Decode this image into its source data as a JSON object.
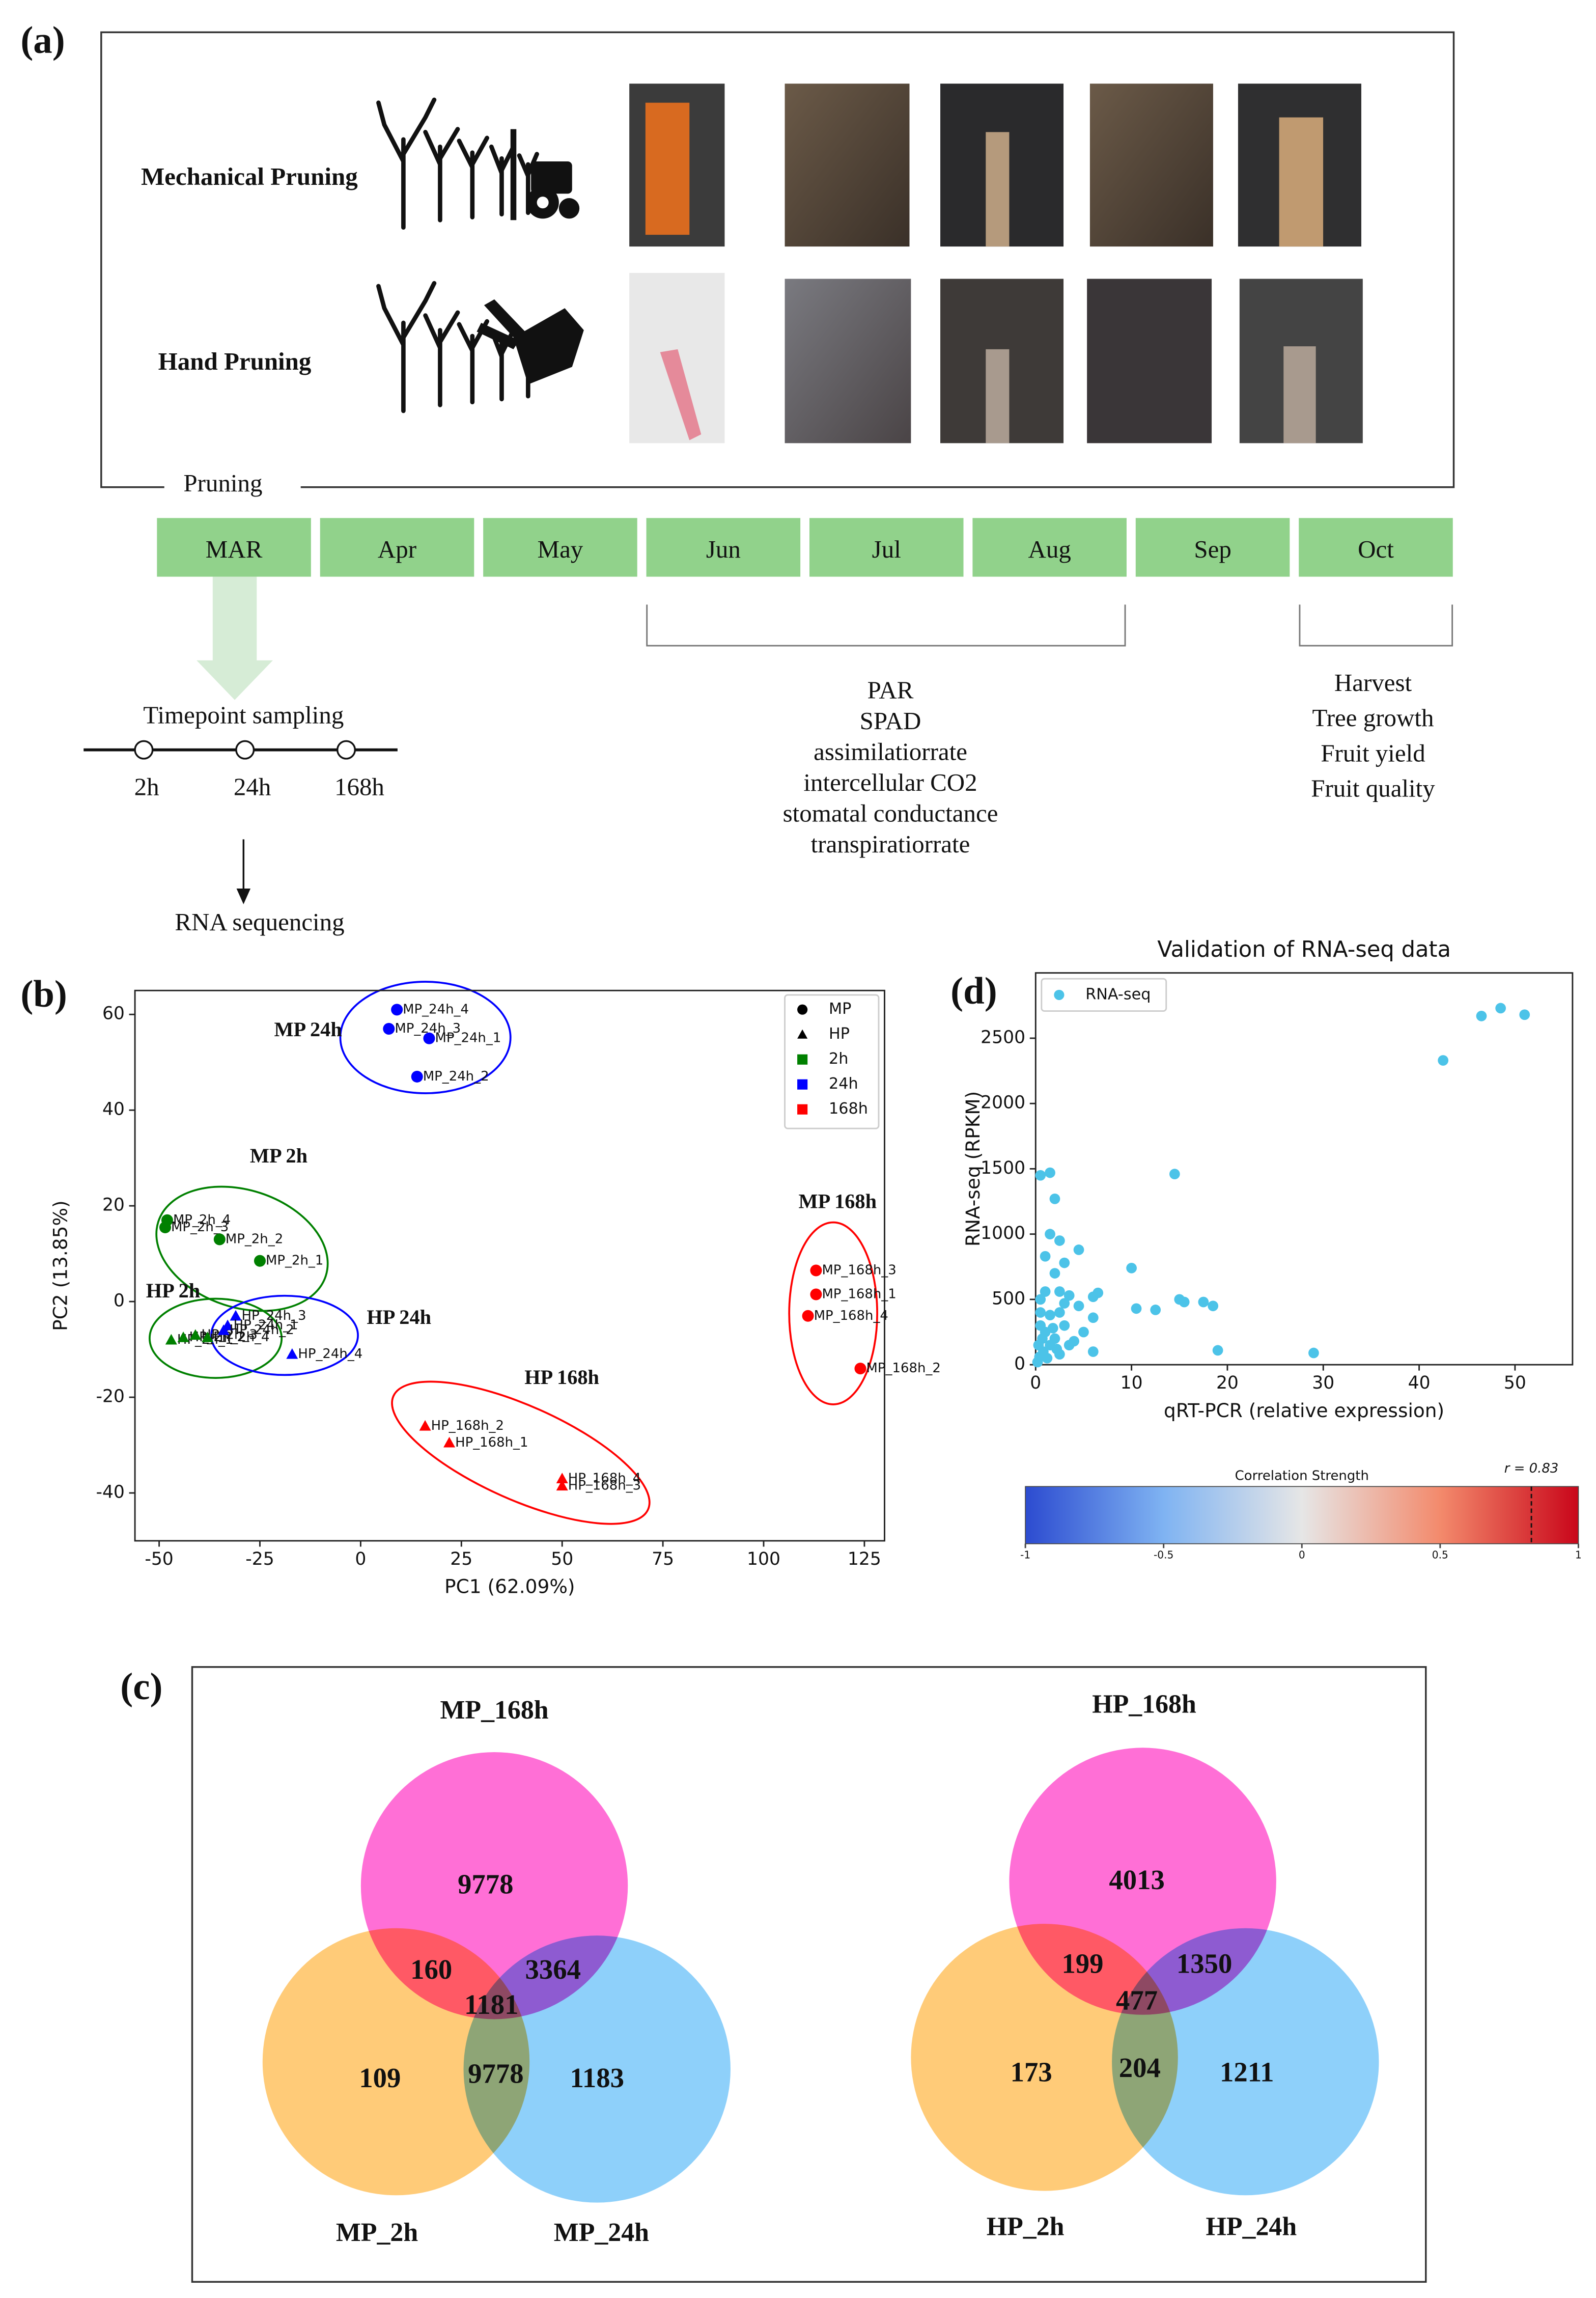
{
  "panel_a": {
    "label": "(a)",
    "rows": [
      "Mechanical Pruning",
      "Hand Pruning"
    ],
    "pruning_label": "Pruning",
    "months": [
      "MAR",
      "Apr",
      "May",
      "Jun",
      "Jul",
      "Aug",
      "Sep",
      "Oct"
    ],
    "measurements": [
      "PAR",
      "SPAD",
      "assimilatiorrate",
      "intercellular CO2",
      "stomatal conductance",
      "transpiratiorrate"
    ],
    "outcomes": [
      "Harvest",
      "Tree growth",
      "Fruit yield",
      "Fruit quality"
    ],
    "sampling": {
      "title": "Timepoint sampling",
      "timepoints": [
        "2h",
        "24h",
        "168h"
      ]
    },
    "sequencing": "RNA sequencing"
  },
  "chart_data": [
    {
      "type": "scatter",
      "label": "(b)",
      "xlabel": "PC1 (62.09%)",
      "ylabel": "PC2 (13.85%)",
      "xlim": [
        -56,
        130
      ],
      "ylim": [
        -50,
        65
      ],
      "xticks": [
        -50,
        -25,
        0,
        25,
        50,
        75,
        100,
        125
      ],
      "yticks": [
        -40,
        -20,
        0,
        20,
        40,
        60
      ],
      "grid": false,
      "legend_position": "upper right",
      "legend": [
        {
          "label": "MP",
          "marker": "circle",
          "color": "#000000"
        },
        {
          "label": "HP",
          "marker": "triangle",
          "color": "#000000"
        },
        {
          "label": "2h",
          "marker": "square",
          "color": "#008000"
        },
        {
          "label": "24h",
          "marker": "square",
          "color": "#0000ff"
        },
        {
          "label": "168h",
          "marker": "square",
          "color": "#ff0000"
        }
      ],
      "series": [
        {
          "name": "MP 24h",
          "color": "#0000ff",
          "marker": "circle",
          "x": [
            9,
            7,
            17,
            14
          ],
          "y": [
            61,
            57,
            55,
            47
          ],
          "point_labels": [
            "MP_24h_4",
            "MP_24h_3",
            "MP_24h_1",
            "MP_24h_2"
          ]
        },
        {
          "name": "MP 2h",
          "color": "#008000",
          "marker": "circle",
          "x": [
            -48,
            -48.5,
            -35,
            -25
          ],
          "y": [
            17,
            15.5,
            13,
            8.5
          ],
          "point_labels": [
            "MP_2h_4",
            "MP_2h_3",
            "MP_2h_2",
            "MP_2h_1"
          ]
        },
        {
          "name": "HP 2h",
          "color": "#008000",
          "marker": "triangle",
          "x": [
            -47,
            -44,
            -41,
            -38
          ],
          "y": [
            -8,
            -7.5,
            -7,
            -7.5
          ],
          "point_labels": [
            "HP_2h_1",
            "HP_2h_2",
            "HP_2h_3",
            "HP_2h_4"
          ]
        },
        {
          "name": "HP 24h",
          "color": "#0000ff",
          "marker": "triangle",
          "x": [
            -31,
            -33,
            -34,
            -17
          ],
          "y": [
            -3,
            -5,
            -6,
            -11
          ],
          "point_labels": [
            "HP_24h_3",
            "HP_24h_1",
            "HP_24h_2",
            "HP_24h_4"
          ]
        },
        {
          "name": "HP 168h",
          "color": "#ff0000",
          "marker": "triangle",
          "x": [
            16,
            22,
            50,
            50
          ],
          "y": [
            -26,
            -29.5,
            -37,
            -38.5
          ],
          "point_labels": [
            "HP_168h_2",
            "HP_168h_1",
            "HP_168h_4",
            "HP_168h_3"
          ]
        },
        {
          "name": "MP 168h",
          "color": "#ff0000",
          "marker": "circle",
          "x": [
            113,
            113,
            111,
            124
          ],
          "y": [
            6.5,
            1.5,
            -3,
            -14
          ],
          "point_labels": [
            "MP_168h_3",
            "MP_168h_1",
            "MP_168h_4",
            "MP_168h_2"
          ]
        }
      ]
    },
    {
      "type": "scatter",
      "label": "(d)",
      "title": "Validation of RNA-seq data",
      "xlabel": "qRT-PCR (relative expression)",
      "ylabel": "RNA-seq (RPKM)",
      "xlim": [
        0,
        56
      ],
      "ylim": [
        0,
        3000
      ],
      "xticks": [
        0,
        10,
        20,
        30,
        40,
        50
      ],
      "yticks": [
        0,
        500,
        1000,
        1500,
        2000,
        2500
      ],
      "grid": false,
      "legend_position": "upper left",
      "series": [
        {
          "name": "RNA-seq",
          "color": "#4cc3e8",
          "marker": "circle",
          "x": [
            42.5,
            46.5,
            48.5,
            51,
            0.5,
            1.5,
            2,
            14.5,
            1.5,
            2.5,
            1,
            3,
            4.5,
            10,
            2,
            6,
            6.5,
            10.5,
            12.5,
            15,
            15.5,
            17.5,
            18.5,
            19,
            29,
            4.5,
            3.5,
            2.5,
            1,
            0.5,
            3,
            6,
            5,
            6,
            2.5,
            1.5,
            0.5,
            1,
            2,
            0.3,
            0.8,
            1.2,
            0.2,
            0.5,
            3,
            3.5,
            2.5,
            1.8,
            0.7,
            0.4,
            1.5,
            4,
            2.2
          ],
          "y": [
            2330,
            2670,
            2730,
            2680,
            1450,
            1470,
            1270,
            1460,
            1000,
            950,
            830,
            780,
            880,
            740,
            700,
            520,
            550,
            430,
            420,
            500,
            480,
            480,
            450,
            110,
            90,
            450,
            530,
            560,
            560,
            500,
            470,
            360,
            250,
            100,
            400,
            380,
            300,
            250,
            200,
            150,
            100,
            50,
            20,
            400,
            300,
            150,
            80,
            280,
            200,
            60,
            150,
            180,
            120
          ]
        }
      ],
      "colorbar": {
        "label": "Correlation Strength",
        "lim": [
          -1,
          1
        ],
        "ticks": [
          -1,
          -0.5,
          0,
          0.5,
          1
        ],
        "r": 0.83,
        "r_label": "r = 0.83"
      }
    }
  ],
  "panel_c": {
    "label": "(c)",
    "venns": [
      {
        "sets": [
          "MP_168h",
          "MP_2h",
          "MP_24h"
        ],
        "regions": [
          9778,
          160,
          3364,
          1181,
          109,
          9778,
          1183
        ]
      },
      {
        "sets": [
          "HP_168h",
          "HP_2h",
          "HP_24h"
        ],
        "regions": [
          4013,
          199,
          1350,
          477,
          173,
          204,
          1211
        ]
      }
    ]
  }
}
